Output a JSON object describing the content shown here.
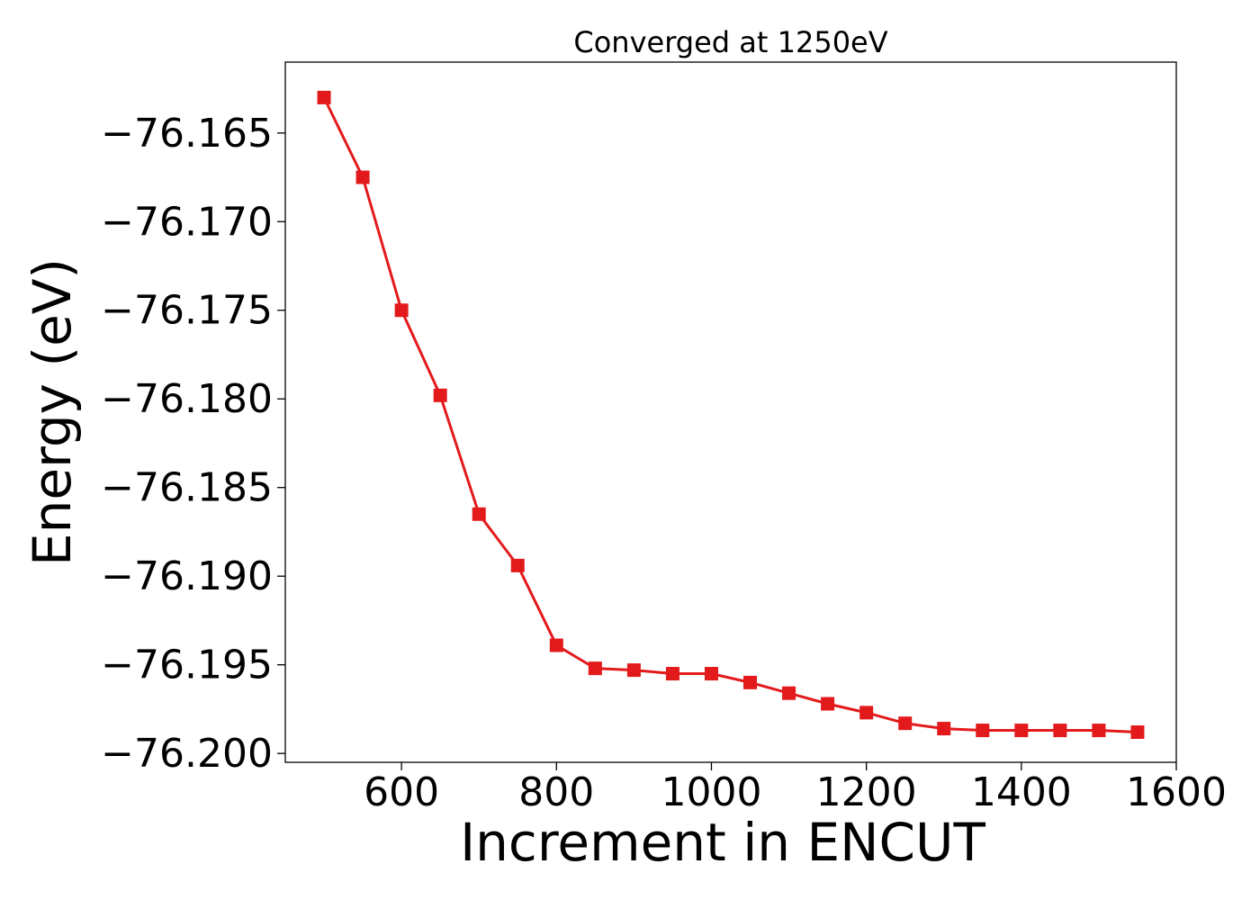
{
  "chart_data": {
    "type": "line",
    "title": "Converged at 1250eV",
    "xlabel": "Increment in ENCUT",
    "ylabel": "Energy (eV)",
    "xlim": [
      450,
      1600
    ],
    "ylim": [
      -76.2005,
      -76.161
    ],
    "xticks": [
      600,
      800,
      1000,
      1200,
      1400,
      1600
    ],
    "yticks": [
      -76.165,
      -76.17,
      -76.175,
      -76.18,
      -76.185,
      -76.19,
      -76.195,
      -76.2
    ],
    "ytick_labels": [
      "−76.165",
      "−76.170",
      "−76.175",
      "−76.180",
      "−76.185",
      "−76.190",
      "−76.195",
      "−76.200"
    ],
    "grid": false,
    "marker": "square",
    "color": "#e31a1c",
    "series": [
      {
        "x": [
          500,
          550,
          600,
          650,
          700,
          750,
          800,
          850,
          900,
          950,
          1000,
          1050,
          1100,
          1150,
          1200,
          1250,
          1300,
          1350,
          1400,
          1450,
          1500,
          1550
        ],
        "y": [
          -76.163,
          -76.1675,
          -76.175,
          -76.1798,
          -76.1865,
          -76.1894,
          -76.1939,
          -76.1952,
          -76.1953,
          -76.1955,
          -76.1955,
          -76.196,
          -76.1966,
          -76.1972,
          -76.1977,
          -76.1983,
          -76.1986,
          -76.1987,
          -76.1987,
          -76.1987,
          -76.1987,
          -76.1988
        ]
      }
    ]
  }
}
